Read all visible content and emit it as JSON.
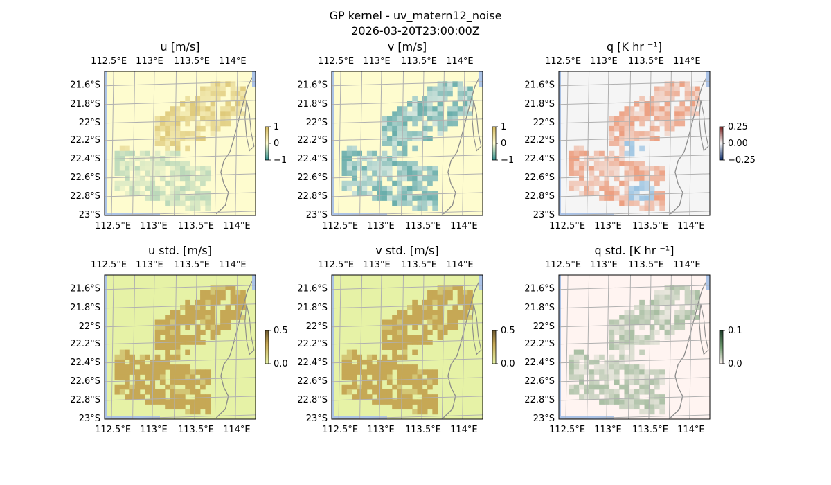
{
  "figure": {
    "title_line1": "GP kernel - uv_matern12_noise",
    "title_line2": "2026-03-20T23:00:00Z"
  },
  "colors": {
    "land": "#ffffff",
    "ocean": "#aac2e6",
    "grid": "#b0b0b0",
    "coast": "#8a8a8a",
    "u_base": "#fefccf",
    "u_pos": "#d4b95e",
    "u_neg": "#2f8f8f",
    "std_base": "#e6f2a6",
    "std_high": "#c6a855",
    "q_base": "#f5f5f5",
    "q_pos": "#e8794d",
    "q_neg": "#5a9fd4",
    "qstd_base": "#fff4f1",
    "qstd_high": "#6e9a6e"
  },
  "chart_data": [
    {
      "type": "heatmap",
      "id": "u",
      "title": "u [m/s]",
      "xticks": [
        "112.5°E",
        "113°E",
        "113.5°E",
        "114°E"
      ],
      "yticks": [
        "21.6°S",
        "21.8°S",
        "22°S",
        "22.2°S",
        "22.4°S",
        "22.6°S",
        "22.8°S",
        "23°S"
      ],
      "colorbar": {
        "ticks": [
          "1",
          "0",
          "−1"
        ],
        "range": [
          -1,
          1
        ]
      },
      "field": "u"
    },
    {
      "type": "heatmap",
      "id": "v",
      "title": "v [m/s]",
      "xticks": [
        "112.5°E",
        "113°E",
        "113.5°E",
        "114°E"
      ],
      "yticks": [
        "21.6°S",
        "21.8°S",
        "22°S",
        "22.2°S",
        "22.4°S",
        "22.6°S",
        "22.8°S",
        "23°S"
      ],
      "colorbar": {
        "ticks": [
          "1",
          "0",
          "−1"
        ],
        "range": [
          -1,
          1
        ]
      },
      "field": "v"
    },
    {
      "type": "heatmap",
      "id": "q",
      "title": "q [K hr ⁻¹]",
      "xticks": [
        "112.5°E",
        "113°E",
        "113.5°E",
        "114°E"
      ],
      "yticks": [
        "21.6°S",
        "21.8°S",
        "22°S",
        "22.2°S",
        "22.4°S",
        "22.6°S",
        "22.8°S",
        "23°S"
      ],
      "colorbar": {
        "ticks": [
          "0.25",
          "0.00",
          "−0.25"
        ],
        "range": [
          -0.25,
          0.25
        ]
      },
      "field": "q"
    },
    {
      "type": "heatmap",
      "id": "ustd",
      "title": "u std. [m/s]",
      "xticks": [
        "112.5°E",
        "113°E",
        "113.5°E",
        "114°E"
      ],
      "yticks": [
        "21.6°S",
        "21.8°S",
        "22°S",
        "22.2°S",
        "22.4°S",
        "22.6°S",
        "22.8°S",
        "23°S"
      ],
      "colorbar": {
        "ticks": [
          "0.5",
          "0.0"
        ],
        "range": [
          0,
          0.5
        ]
      },
      "field": "std"
    },
    {
      "type": "heatmap",
      "id": "vstd",
      "title": "v std. [m/s]",
      "xticks": [
        "112.5°E",
        "113°E",
        "113.5°E",
        "114°E"
      ],
      "yticks": [
        "21.6°S",
        "21.8°S",
        "22°S",
        "22.2°S",
        "22.4°S",
        "22.6°S",
        "22.8°S",
        "23°S"
      ],
      "colorbar": {
        "ticks": [
          "0.5",
          "0.0"
        ],
        "range": [
          0,
          0.5
        ]
      },
      "field": "std"
    },
    {
      "type": "heatmap",
      "id": "qstd",
      "title": "q std. [K hr ⁻¹]",
      "xticks": [
        "112.5°E",
        "113°E",
        "113.5°E",
        "114°E"
      ],
      "yticks": [
        "21.6°S",
        "21.8°S",
        "22°S",
        "22.2°S",
        "22.4°S",
        "22.6°S",
        "22.8°S",
        "23°S"
      ],
      "colorbar": {
        "ticks": [
          "0.1",
          "0.0"
        ],
        "range": [
          0,
          0.1
        ]
      },
      "field": "qstd"
    }
  ]
}
